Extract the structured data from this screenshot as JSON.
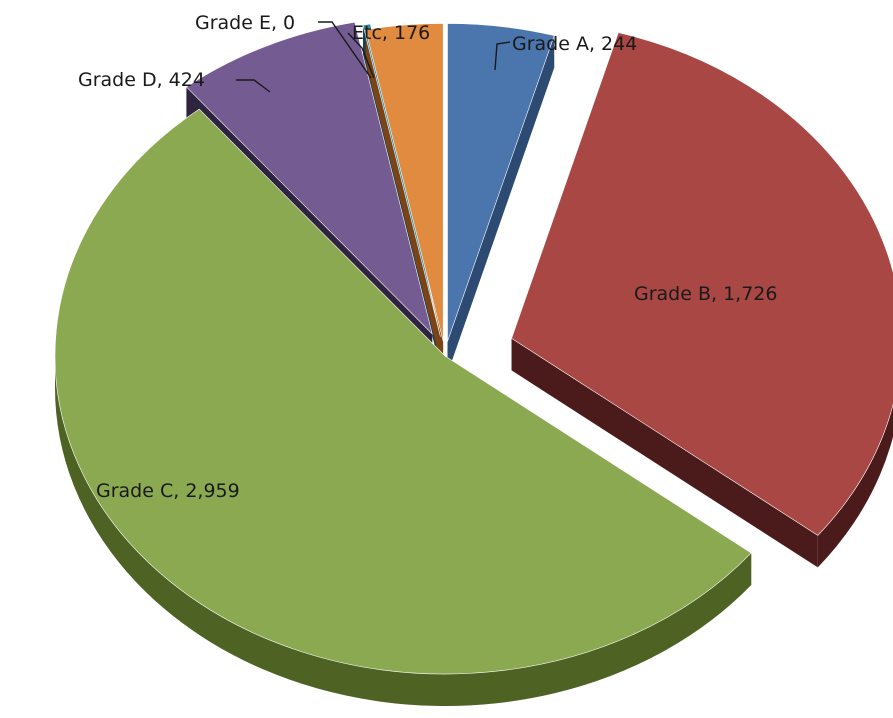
{
  "chart_data": {
    "type": "pie",
    "style": "3d-exploded",
    "title": "",
    "legend": "none",
    "slices": [
      {
        "label": "Grade A",
        "value": 244,
        "display": "Grade A, 244",
        "color": "#4a76ad",
        "side": "#2c4a72"
      },
      {
        "label": "Grade B",
        "value": 1726,
        "display": "Grade B, 1,726",
        "color": "#a94744",
        "side": "#4a1b1a"
      },
      {
        "label": "Grade C",
        "value": 2959,
        "display": "Grade C, 2,959",
        "color": "#8ba950",
        "side": "#4e6224"
      },
      {
        "label": "Grade D",
        "value": 424,
        "display": "Grade D, 424",
        "color": "#745c92",
        "side": "#2f2440"
      },
      {
        "label": "Grade E",
        "value": 0,
        "display": "Grade E, 0",
        "color": "#2f8ea3",
        "side": "#1d3f48"
      },
      {
        "label": "Etc",
        "value": 176,
        "display": "Etc, 176",
        "color": "#e08b3f",
        "side": "#7a4416"
      }
    ]
  }
}
